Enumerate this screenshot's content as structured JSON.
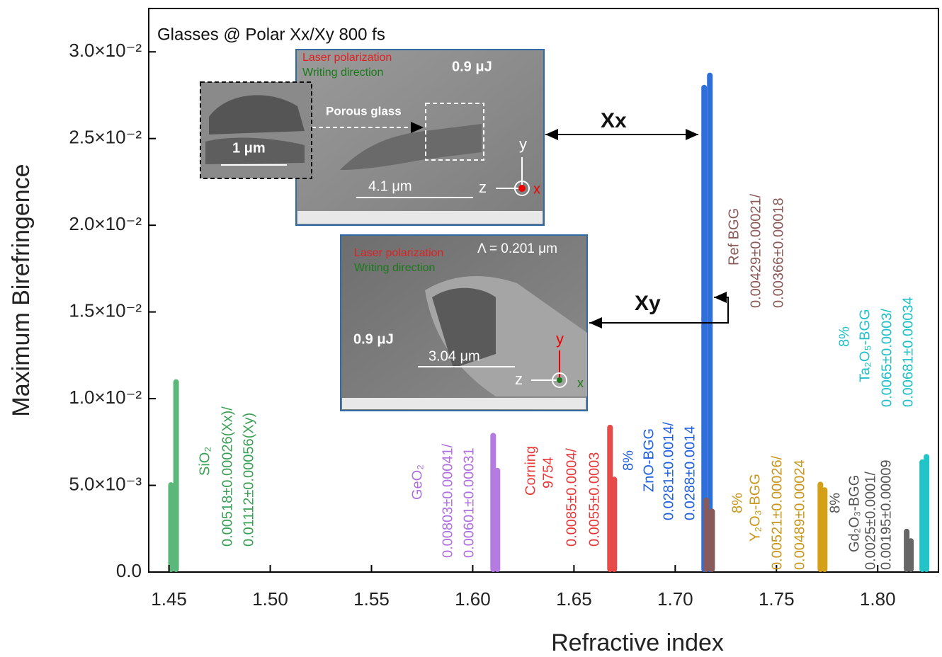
{
  "chart_data": {
    "type": "bar",
    "title": "Glasses @ Polar Xx/Xy 800 fs",
    "xlabel": "Refractive index",
    "ylabel": "Maximum Birefringence",
    "xlim": [
      1.44,
      1.83
    ],
    "ylim": [
      0,
      0.0325
    ],
    "xticks": [
      1.45,
      {
        "value": 1.5,
        "label": "1.50"
      },
      1.55,
      {
        "value": 1.6,
        "label": "1.60"
      },
      1.65,
      {
        "value": 1.7,
        "label": "1.70"
      },
      1.75,
      {
        "value": 1.8,
        "label": "1.80"
      }
    ],
    "yticks": [
      {
        "value": 0,
        "label": "0.0"
      },
      {
        "value": 0.005,
        "label": "5.0×10⁻³"
      },
      {
        "value": 0.01,
        "label": "1.0×10⁻²"
      },
      {
        "value": 0.015,
        "label": "1.5×10⁻²"
      },
      {
        "value": 0.02,
        "label": "2.0×10⁻²"
      },
      {
        "value": 0.025,
        "label": "2.5×10⁻²"
      },
      {
        "value": 0.03,
        "label": "3.0×10⁻²"
      }
    ],
    "series": [
      {
        "color": "#5cb87a",
        "text_color": "#3aa055",
        "x": [
          1.451,
          1.4535
        ],
        "values": [
          0.00518,
          0.01112
        ],
        "label_lines": [
          "SiO₂",
          "0.00518±0.00026(Xx)/",
          "0.01112±0.00056(Xy)"
        ]
      },
      {
        "color": "#b57be0",
        "text_color": "#b070e0",
        "x": [
          1.6101,
          1.6122
        ],
        "values": [
          0.00803,
          0.00601
        ],
        "label_lines": [
          "GeO₂",
          "0.00803±0.00041/",
          "0.00601±0.00031"
        ]
      },
      {
        "color": "#e84a4a",
        "text_color": "#e83a3a",
        "x": [
          1.6678,
          1.6699
        ],
        "values": [
          0.0085,
          0.0055
        ],
        "label_lines": [
          "Corning",
          "9754",
          "0.0085±0.0004/",
          "0.0055±0.0003"
        ]
      },
      {
        "color": "#2e6fd9",
        "text_color": "#2060e0",
        "x": [
          1.7143,
          1.7171
        ],
        "values": [
          0.0281,
          0.0288
        ],
        "label_lines": [
          "8%",
          "ZnO-BGG",
          "0.0281±0.0014/",
          "0.0288±0.0014"
        ]
      },
      {
        "color": "#8a5a5a",
        "text_color": "#8a5a5a",
        "x": [
          1.7154,
          1.7182
        ],
        "values": [
          0.00429,
          0.00366
        ],
        "label_lines": [
          "Ref BGG",
          "0.00429±0.00021/",
          "0.00366±0.00018"
        ]
      },
      {
        "color": "#d4a017",
        "text_color": "#c8961a",
        "x": [
          1.7717,
          1.7738
        ],
        "values": [
          0.00521,
          0.00489
        ],
        "label_lines": [
          "8%",
          "Y₂O₃-BGG",
          "0.00521±0.00026/",
          "0.00489±0.00024"
        ]
      },
      {
        "color": "#666666",
        "text_color": "#555555",
        "x": [
          1.8143,
          1.8164
        ],
        "values": [
          0.0025,
          0.00195
        ],
        "label_lines": [
          "8%",
          "Gd₂O₃-BGG",
          "0.0025±0.0001/",
          "0.00195±0.00009"
        ]
      },
      {
        "color": "#22c4c8",
        "text_color": "#20c0c8",
        "x": [
          1.822,
          1.8241
        ],
        "values": [
          0.0065,
          0.00681
        ],
        "label_lines": [
          "8%",
          "Ta₂O₅-BGG",
          "0.0065±0.0003/",
          "0.00681±0.00034"
        ]
      }
    ],
    "annotations": {
      "xx": "Xx",
      "xy": "Xy",
      "inset1": {
        "laser": "Laser polarization",
        "writing": "Writing direction",
        "energy": "0.9 μJ",
        "porous": "Porous glass",
        "zoom_scale": "1 μm",
        "scale": "4.1 μm",
        "y": "y",
        "z": "z",
        "x": "x"
      },
      "inset2": {
        "laser": "Laser polarization",
        "writing": "Writing direction",
        "period": "Λ = 0.201 μm",
        "energy": "0.9 μJ",
        "scale": "3.04 μm",
        "y": "y",
        "z": "z",
        "x": "x"
      }
    }
  }
}
